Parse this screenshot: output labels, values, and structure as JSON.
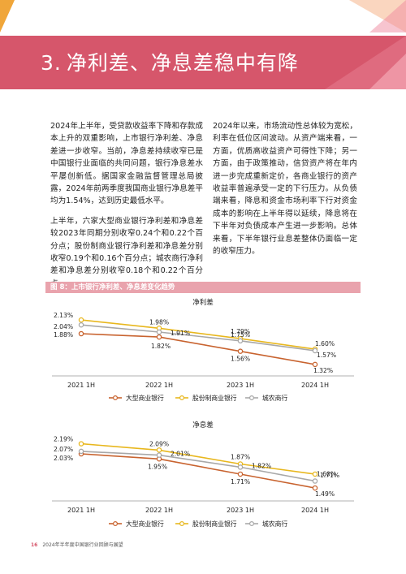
{
  "colors": {
    "band": "#d6566b",
    "large_bank": "#c8632f",
    "joint_stock_bank": "#e8b71e",
    "rural_bank": "#a8a8a8"
  },
  "header": {
    "title_number": "3.",
    "title_text": "净利差、净息差稳中有降"
  },
  "body": {
    "left_paragraphs": [
      "2024年上半年，受贷款收益率下降和存款成本上升的双重影响，上市银行净利差、净息差进一步收窄。当前，净息差持续收窄已是中国银行业面临的共同问题，银行净息差水平屡创新低。据国家金融监督管理总局披露，2024年前两季度我国商业银行净息差平均为1.54%，达到历史最低水平。",
      "上半年，六家大型商业银行净利差和净息差较2023年同期分别收窄0.24个和0.22个百分点；股份制商业银行净利差和净息差分别收窄0.19个和0.16个百分点；城农商行净利差和净息差分别收窄0.18个和0.22个百分点。"
    ],
    "right_paragraphs": [
      "2024年以来，市场流动性总体较为宽松，利率在低位区间波动。从资产端来看，一方面，优质高收益资产可得性下降；另一方面，由于政策推动，信贷资产将在年内进一步完成重新定价，各商业银行的资产收益率普遍承受一定的下行压力。从负债端来看，降息和资金市场利率下行对资金成本的影响在上半年得以延续，降息将在下半年对负债成本产生进一步影响。总体来看，下半年银行业息差整体仍面临一定的收窄压力。"
    ]
  },
  "figure": {
    "label": "图 8：上市银行净利差、净息差变化趋势"
  },
  "chart_data": [
    {
      "type": "line",
      "title": "净利差",
      "categories": [
        "2021 1H",
        "2022 1H",
        "2023 1H",
        "2024 1H"
      ],
      "series": [
        {
          "name": "大型商业银行",
          "values": [
            1.88,
            1.82,
            1.56,
            1.32
          ],
          "labels": [
            "1.88%",
            "1.82%",
            "1.56%",
            "1.32%"
          ]
        },
        {
          "name": "股份制商业银行",
          "values": [
            2.13,
            1.98,
            1.79,
            1.6
          ],
          "labels": [
            "2.13%",
            "1.98%",
            "1.79%",
            "1.60%"
          ]
        },
        {
          "name": "城农商行",
          "values": [
            2.04,
            1.91,
            1.75,
            1.57
          ],
          "labels": [
            "2.04%",
            "1.91%",
            "1.75%",
            "1.57%"
          ]
        }
      ],
      "ylim": [
        1.2,
        2.25
      ],
      "grid": false,
      "legend": "bottom"
    },
    {
      "type": "line",
      "title": "净息差",
      "categories": [
        "2021 1H",
        "2022 1H",
        "2023 1H",
        "2024 1H"
      ],
      "series": [
        {
          "name": "大型商业银行",
          "values": [
            2.03,
            1.95,
            1.71,
            1.49
          ],
          "labels": [
            "2.03%",
            "1.95%",
            "1.71%",
            "1.49%"
          ]
        },
        {
          "name": "股份制商业银行",
          "values": [
            2.19,
            2.09,
            1.87,
            1.71
          ],
          "labels": [
            "2.19%",
            "2.09%",
            "1.87%",
            "1.71%"
          ]
        },
        {
          "name": "城农商行",
          "values": [
            2.07,
            2.01,
            1.82,
            1.6
          ],
          "labels": [
            "2.07%",
            "2.01%",
            "1.82%",
            "1.60%"
          ]
        }
      ],
      "ylim": [
        1.35,
        2.3
      ],
      "grid": false,
      "legend": "bottom"
    }
  ],
  "footer": {
    "page_number": "16",
    "text": "2024年半年度中国银行业回顾与展望"
  }
}
